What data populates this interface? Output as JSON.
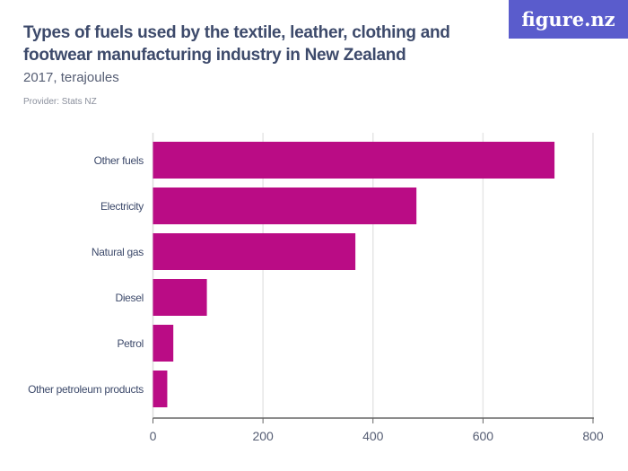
{
  "title": "Types of fuels used by the textile, leather, clothing and footwear manufacturing industry in New Zealand",
  "subtitle": "2017, terajoules",
  "provider": "Provider: Stats NZ",
  "logo": "figure.nz",
  "chart_data": {
    "type": "bar",
    "orientation": "horizontal",
    "categories": [
      "Other fuels",
      "Electricity",
      "Natural gas",
      "Diesel",
      "Petrol",
      "Other petroleum products"
    ],
    "values": [
      730,
      479,
      368,
      98,
      37,
      26
    ],
    "xlim": [
      0,
      800
    ],
    "xticks": [
      0,
      200,
      400,
      600,
      800
    ],
    "grid": true,
    "color": "#ba0c85"
  }
}
